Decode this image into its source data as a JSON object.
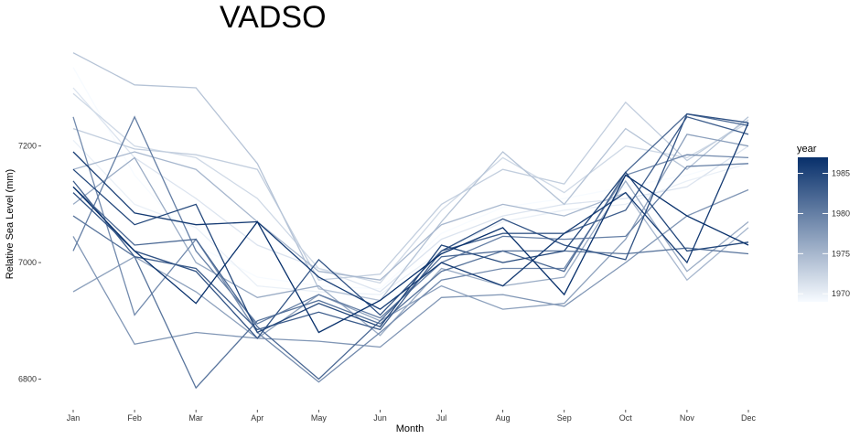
{
  "chart_data": {
    "type": "line",
    "title": "VADSO",
    "xlabel": "Month",
    "ylabel": "Relative Sea Level (mm)",
    "categories": [
      "Jan",
      "Feb",
      "Mar",
      "Apr",
      "May",
      "Jun",
      "Jul",
      "Aug",
      "Sep",
      "Oct",
      "Nov",
      "Dec"
    ],
    "ylim": [
      6760,
      7380
    ],
    "yticks": [
      6800,
      7000,
      7200
    ],
    "grid": false,
    "color_scale": {
      "title": "year",
      "range": [
        1969,
        1987
      ],
      "ticks": [
        1970,
        1975,
        1980,
        1985
      ],
      "low_color": "#f7fbff",
      "high_color": "#08306b"
    },
    "series": [
      {
        "year": 1969,
        "values": [
          7335,
          7150,
          7030,
          6975,
          6960,
          6955,
          7050,
          7095,
          7110,
          7130,
          7150,
          7180
        ]
      },
      {
        "year": 1970,
        "values": [
          7210,
          7100,
          7060,
          6960,
          6950,
          6945,
          7020,
          7070,
          7090,
          7100,
          7140,
          7170
        ]
      },
      {
        "year": 1971,
        "values": [
          7300,
          7180,
          7110,
          7030,
          6990,
          6950,
          7040,
          7080,
          7100,
          7110,
          7130,
          7200
        ]
      },
      {
        "year": 1972,
        "values": [
          7290,
          7200,
          7180,
          7110,
          6990,
          6965,
          7090,
          7180,
          7120,
          7200,
          7180,
          7240
        ]
      },
      {
        "year": 1973,
        "values": [
          7230,
          7195,
          7185,
          7160,
          6970,
          6980,
          7100,
          7160,
          7135,
          7275,
          7175,
          7245
        ]
      },
      {
        "year": 1974,
        "values": [
          7360,
          7305,
          7300,
          7170,
          6955,
          6935,
          7070,
          7190,
          7100,
          7230,
          7160,
          7250
        ]
      },
      {
        "year": 1975,
        "values": [
          7160,
          7190,
          7160,
          7070,
          6985,
          6970,
          7065,
          7100,
          7080,
          7120,
          6970,
          7060
        ]
      },
      {
        "year": 1976,
        "values": [
          7100,
          7180,
          7000,
          6940,
          6960,
          6875,
          6990,
          6960,
          6975,
          7140,
          6985,
          7070
        ]
      },
      {
        "year": 1977,
        "values": [
          6950,
          7010,
          6950,
          6870,
          6945,
          6900,
          6960,
          6920,
          6930,
          7040,
          7220,
          7200
        ]
      },
      {
        "year": 1978,
        "values": [
          7045,
          6860,
          6880,
          6870,
          6865,
          6855,
          6940,
          6945,
          6925,
          7000,
          7080,
          7125
        ]
      },
      {
        "year": 1979,
        "values": [
          7250,
          6910,
          7040,
          6880,
          6795,
          6880,
          6970,
          6990,
          6990,
          7150,
          7185,
          7180
        ]
      },
      {
        "year": 1980,
        "values": [
          7020,
          7250,
          7020,
          6895,
          6945,
          6905,
          7000,
          7045,
          7040,
          7045,
          7165,
          7170
        ]
      },
      {
        "year": 1981,
        "values": [
          7080,
          7010,
          6785,
          6900,
          6935,
          6895,
          6985,
          7020,
          7020,
          7015,
          7025,
          7015
        ]
      },
      {
        "year": 1982,
        "values": [
          7130,
          7030,
          7040,
          6890,
          6800,
          6900,
          7010,
          7020,
          6985,
          7155,
          7255,
          7235
        ]
      },
      {
        "year": 1983,
        "values": [
          7140,
          7010,
          6990,
          6885,
          6915,
          6885,
          7020,
          7050,
          7050,
          7090,
          7250,
          7220
        ]
      },
      {
        "year": 1984,
        "values": [
          7120,
          7020,
          6985,
          6870,
          7005,
          6910,
          7020,
          7075,
          7030,
          7005,
          7255,
          7240
        ]
      },
      {
        "year": 1985,
        "values": [
          7160,
          7065,
          7100,
          6880,
          6930,
          6890,
          7030,
          7000,
          7020,
          7155,
          7020,
          7035
        ]
      },
      {
        "year": 1986,
        "values": [
          7190,
          7085,
          7065,
          7070,
          6975,
          6920,
          7000,
          6960,
          7050,
          7120,
          7000,
          7240
        ]
      },
      {
        "year": 1987,
        "values": [
          7130,
          7020,
          6930,
          7070,
          6880,
          6935,
          7015,
          7060,
          6945,
          7150,
          7080,
          7030
        ]
      }
    ]
  }
}
